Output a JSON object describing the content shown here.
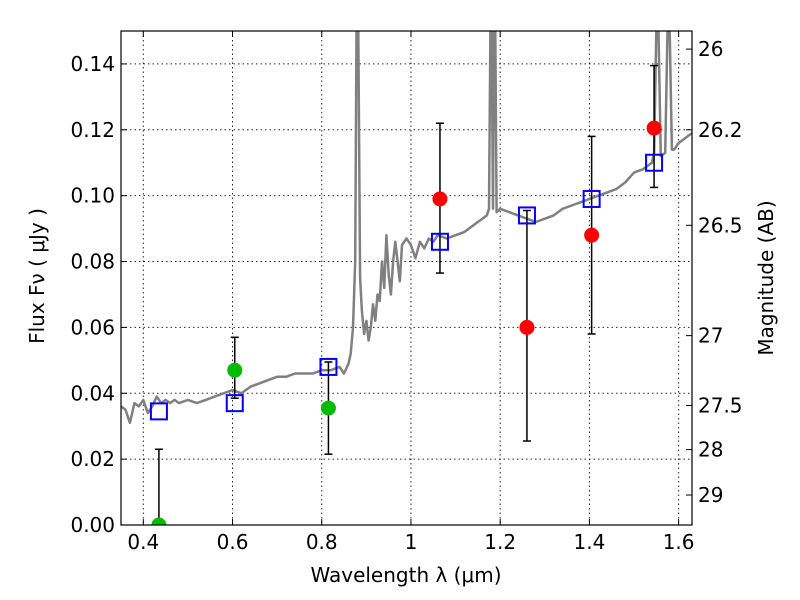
{
  "chart_data": {
    "type": "scatter",
    "xlabel": "Wavelength  λ (μm)",
    "ylabel": "Flux  Fν  ( μJy )",
    "y2label": "Magnitude (AB)",
    "xlim": [
      0.35,
      1.63
    ],
    "ylim": [
      0.0,
      0.15
    ],
    "grid": true,
    "x_ticks": [
      0.4,
      0.6,
      0.8,
      1.0,
      1.2,
      1.4,
      1.6
    ],
    "x_tick_labels": [
      "0.4",
      "0.6",
      "0.8",
      "1",
      "1.2",
      "1.4",
      "1.6"
    ],
    "y_ticks": [
      0.0,
      0.02,
      0.04,
      0.06,
      0.08,
      0.1,
      0.12,
      0.14
    ],
    "y_tick_labels": [
      "0.00",
      "0.02",
      "0.04",
      "0.06",
      "0.08",
      "0.10",
      "0.12",
      "0.14"
    ],
    "right_ticks": [
      {
        "label": "26",
        "flux": 0.1445
      },
      {
        "label": "26.2",
        "flux": 0.12
      },
      {
        "label": "26.5",
        "flux": 0.091
      },
      {
        "label": "27",
        "flux": 0.0575
      },
      {
        "label": "27.5",
        "flux": 0.0363
      },
      {
        "label": "28",
        "flux": 0.0229
      },
      {
        "label": "29",
        "flux": 0.0091
      }
    ],
    "model_spectrum": {
      "color": "#808080",
      "points": [
        [
          0.35,
          0.036
        ],
        [
          0.36,
          0.035
        ],
        [
          0.365,
          0.033
        ],
        [
          0.37,
          0.031
        ],
        [
          0.375,
          0.034
        ],
        [
          0.38,
          0.037
        ],
        [
          0.39,
          0.036
        ],
        [
          0.4,
          0.038
        ],
        [
          0.41,
          0.034
        ],
        [
          0.42,
          0.036
        ],
        [
          0.43,
          0.039
        ],
        [
          0.44,
          0.037
        ],
        [
          0.45,
          0.038
        ],
        [
          0.46,
          0.037
        ],
        [
          0.47,
          0.038
        ],
        [
          0.48,
          0.037
        ],
        [
          0.5,
          0.038
        ],
        [
          0.52,
          0.037
        ],
        [
          0.54,
          0.038
        ],
        [
          0.56,
          0.039
        ],
        [
          0.58,
          0.04
        ],
        [
          0.6,
          0.041
        ],
        [
          0.62,
          0.04
        ],
        [
          0.64,
          0.042
        ],
        [
          0.66,
          0.043
        ],
        [
          0.68,
          0.044
        ],
        [
          0.7,
          0.045
        ],
        [
          0.72,
          0.045
        ],
        [
          0.74,
          0.046
        ],
        [
          0.76,
          0.046
        ],
        [
          0.78,
          0.046
        ],
        [
          0.8,
          0.047
        ],
        [
          0.82,
          0.047
        ],
        [
          0.84,
          0.048
        ],
        [
          0.85,
          0.046
        ],
        [
          0.86,
          0.049
        ],
        [
          0.865,
          0.052
        ],
        [
          0.87,
          0.06
        ],
        [
          0.875,
          0.08
        ],
        [
          0.878,
          0.15
        ],
        [
          0.882,
          0.15
        ],
        [
          0.886,
          0.075
        ],
        [
          0.89,
          0.065
        ],
        [
          0.895,
          0.058
        ],
        [
          0.9,
          0.062
        ],
        [
          0.905,
          0.056
        ],
        [
          0.91,
          0.06
        ],
        [
          0.915,
          0.067
        ],
        [
          0.92,
          0.062
        ],
        [
          0.925,
          0.07
        ],
        [
          0.93,
          0.068
        ],
        [
          0.935,
          0.08
        ],
        [
          0.94,
          0.072
        ],
        [
          0.945,
          0.088
        ],
        [
          0.95,
          0.076
        ],
        [
          0.955,
          0.07
        ],
        [
          0.96,
          0.08
        ],
        [
          0.965,
          0.086
        ],
        [
          0.97,
          0.08
        ],
        [
          0.975,
          0.074
        ],
        [
          0.98,
          0.085
        ],
        [
          0.99,
          0.087
        ],
        [
          1.0,
          0.085
        ],
        [
          1.01,
          0.081
        ],
        [
          1.02,
          0.086
        ],
        [
          1.03,
          0.084
        ],
        [
          1.04,
          0.087
        ],
        [
          1.05,
          0.086
        ],
        [
          1.06,
          0.088
        ],
        [
          1.08,
          0.087
        ],
        [
          1.1,
          0.088
        ],
        [
          1.12,
          0.089
        ],
        [
          1.14,
          0.091
        ],
        [
          1.16,
          0.093
        ],
        [
          1.17,
          0.094
        ],
        [
          1.175,
          0.096
        ],
        [
          1.178,
          0.15
        ],
        [
          1.181,
          0.15
        ],
        [
          1.184,
          0.096
        ],
        [
          1.186,
          0.15
        ],
        [
          1.189,
          0.15
        ],
        [
          1.192,
          0.095
        ],
        [
          1.2,
          0.096
        ],
        [
          1.22,
          0.095
        ],
        [
          1.24,
          0.094
        ],
        [
          1.26,
          0.093
        ],
        [
          1.28,
          0.092
        ],
        [
          1.3,
          0.093
        ],
        [
          1.32,
          0.094
        ],
        [
          1.34,
          0.096
        ],
        [
          1.36,
          0.097
        ],
        [
          1.38,
          0.098
        ],
        [
          1.4,
          0.099
        ],
        [
          1.42,
          0.1
        ],
        [
          1.44,
          0.101
        ],
        [
          1.46,
          0.102
        ],
        [
          1.48,
          0.104
        ],
        [
          1.5,
          0.107
        ],
        [
          1.52,
          0.108
        ],
        [
          1.54,
          0.11
        ],
        [
          1.545,
          0.113
        ],
        [
          1.55,
          0.15
        ],
        [
          1.555,
          0.15
        ],
        [
          1.56,
          0.112
        ],
        [
          1.57,
          0.113
        ],
        [
          1.575,
          0.15
        ],
        [
          1.58,
          0.15
        ],
        [
          1.585,
          0.114
        ],
        [
          1.59,
          0.114
        ],
        [
          1.6,
          0.116
        ],
        [
          1.61,
          0.117
        ],
        [
          1.62,
          0.118
        ],
        [
          1.63,
          0.119
        ]
      ]
    },
    "model_photometry": {
      "marker": "open-square",
      "color": "#0000ff",
      "points": [
        {
          "x": 0.435,
          "y": 0.0345
        },
        {
          "x": 0.605,
          "y": 0.037
        },
        {
          "x": 0.815,
          "y": 0.048
        },
        {
          "x": 1.065,
          "y": 0.086
        },
        {
          "x": 1.26,
          "y": 0.094
        },
        {
          "x": 1.405,
          "y": 0.099
        },
        {
          "x": 1.545,
          "y": 0.11
        }
      ]
    },
    "observed_optical": {
      "marker": "filled-circle",
      "color": "#00bb00",
      "points": [
        {
          "x": 0.435,
          "y": 0.0,
          "err_low": 0.0,
          "err_high": 0.023
        },
        {
          "x": 0.605,
          "y": 0.047,
          "err_low": 0.0385,
          "err_high": 0.057
        },
        {
          "x": 0.815,
          "y": 0.0355,
          "err_low": 0.0215,
          "err_high": 0.0495
        }
      ]
    },
    "observed_nir": {
      "marker": "filled-circle",
      "color": "#ff0000",
      "points": [
        {
          "x": 1.065,
          "y": 0.099,
          "err_low": 0.0765,
          "err_high": 0.122
        },
        {
          "x": 1.26,
          "y": 0.06,
          "err_low": 0.0255,
          "err_high": 0.0955
        },
        {
          "x": 1.405,
          "y": 0.088,
          "err_low": 0.058,
          "err_high": 0.118
        },
        {
          "x": 1.545,
          "y": 0.1205,
          "err_low": 0.1025,
          "err_high": 0.1395
        }
      ]
    }
  }
}
